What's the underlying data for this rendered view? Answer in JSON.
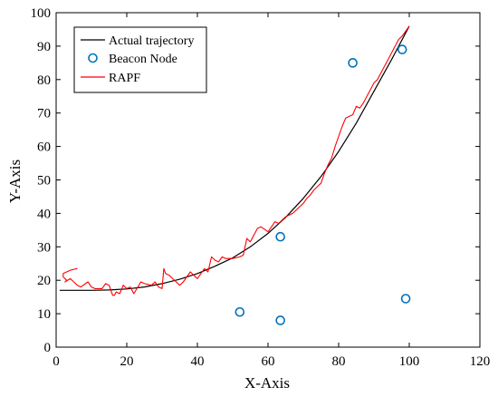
{
  "chart_data": {
    "type": "line",
    "title": "",
    "xlabel": "X-Axis",
    "ylabel": "Y-Axis",
    "xlim": [
      0,
      120
    ],
    "ylim": [
      0,
      100
    ],
    "xticks": [
      0,
      20,
      40,
      60,
      80,
      100,
      120
    ],
    "yticks": [
      0,
      10,
      20,
      30,
      40,
      50,
      60,
      70,
      80,
      90,
      100
    ],
    "grid": false,
    "legend_position": "top-left",
    "series": [
      {
        "name": "Actual trajectory",
        "kind": "line",
        "color": "#000000",
        "x": [
          1,
          5,
          10,
          15,
          20,
          25,
          30,
          35,
          40,
          45,
          50,
          55,
          60,
          65,
          70,
          75,
          80,
          85,
          90,
          95,
          100
        ],
        "y": [
          17,
          17,
          17,
          17.1,
          17.4,
          18,
          19,
          20.3,
          22,
          24.2,
          26.7,
          30,
          34,
          38.8,
          44.5,
          51,
          58.5,
          67,
          76.5,
          86,
          96
        ]
      },
      {
        "name": "Beacon Node",
        "kind": "scatter",
        "color": "#0072BD",
        "x": [
          52,
          63.5,
          63.5,
          84,
          98,
          99
        ],
        "y": [
          10.5,
          8,
          33,
          85,
          89,
          14.5
        ]
      },
      {
        "name": "RAPF",
        "kind": "line",
        "color": "#FF0000",
        "x": [
          6,
          4,
          2,
          2,
          3,
          2.5,
          4,
          5,
          6,
          7,
          9,
          10,
          11,
          13,
          14,
          15,
          16,
          16.5,
          17,
          18,
          19,
          20,
          21,
          22,
          24,
          25,
          27,
          28,
          29,
          30,
          30.5,
          31,
          32,
          33,
          34,
          35,
          36,
          37,
          38,
          39,
          40,
          41,
          42,
          43,
          44,
          45,
          46,
          47,
          48,
          50,
          52,
          53,
          54,
          55,
          56,
          57,
          58,
          60,
          61,
          62,
          63,
          64,
          65,
          66,
          67,
          68,
          69,
          70,
          71,
          72,
          73,
          74,
          75,
          76,
          77,
          78,
          79,
          80,
          81,
          82,
          83,
          84,
          85,
          86,
          87,
          88,
          89,
          90,
          91,
          92,
          93,
          94,
          95,
          96,
          97,
          98,
          99,
          100
        ],
        "y": [
          23.5,
          23,
          22,
          21,
          20,
          19.5,
          20.5,
          19.5,
          18.5,
          18,
          19.5,
          18,
          17.5,
          17.5,
          19,
          18.5,
          15.5,
          15.5,
          16.5,
          16,
          18.5,
          17.5,
          18,
          16,
          19.5,
          19,
          18.5,
          19.5,
          18,
          17.5,
          23.5,
          22,
          21.5,
          20.5,
          19.5,
          18.5,
          19.5,
          21,
          22.5,
          21.5,
          20.5,
          22,
          23.5,
          22.5,
          27,
          26,
          25.5,
          27,
          26.5,
          26.5,
          27,
          27.5,
          32.5,
          31.5,
          33.5,
          35.5,
          36,
          34.5,
          36,
          37.5,
          37,
          38,
          39,
          39.5,
          40,
          41,
          42,
          43,
          44.5,
          45.5,
          47,
          48,
          49,
          52,
          54.5,
          56.5,
          60,
          63,
          66,
          68.5,
          69,
          69.5,
          72,
          71.5,
          73,
          75,
          77,
          79,
          80,
          82,
          84,
          86,
          88,
          90,
          92,
          93,
          94.5,
          96
        ]
      }
    ]
  }
}
